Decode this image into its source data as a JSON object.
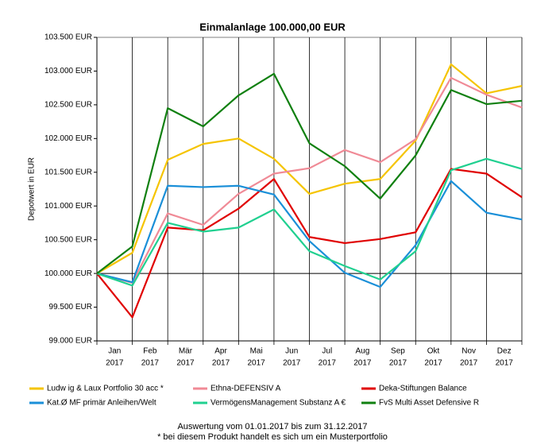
{
  "chart_data": {
    "type": "line",
    "title": "Einmalanlage 100.000,00 EUR",
    "y_label": "Depotwert in EUR",
    "categories": [
      null,
      [
        "Jan",
        "2017"
      ],
      [
        "Feb",
        "2017"
      ],
      [
        "Mär",
        "2017"
      ],
      [
        "Apr",
        "2017"
      ],
      [
        "Mai",
        "2017"
      ],
      [
        "Jun",
        "2017"
      ],
      [
        "Jul",
        "2017"
      ],
      [
        "Aug",
        "2017"
      ],
      [
        "Sep",
        "2017"
      ],
      [
        "Okt",
        "2017"
      ],
      [
        "Nov",
        "2017"
      ],
      [
        "Dez",
        "2017"
      ]
    ],
    "ylim": [
      99000,
      103500
    ],
    "yticks": [
      {
        "value": 99000,
        "label": "99.000 EUR"
      },
      {
        "value": 99500,
        "label": "99.500 EUR"
      },
      {
        "value": 100000,
        "label": "100.000 EUR"
      },
      {
        "value": 100500,
        "label": "100.500 EUR"
      },
      {
        "value": 101000,
        "label": "101.000 EUR"
      },
      {
        "value": 101500,
        "label": "101.500 EUR"
      },
      {
        "value": 102000,
        "label": "102.000 EUR"
      },
      {
        "value": 102500,
        "label": "102.500 EUR"
      },
      {
        "value": 103000,
        "label": "103.000 EUR"
      },
      {
        "value": 103500,
        "label": "103.500 EUR"
      }
    ],
    "series": [
      {
        "name": "Ludw ig & Laux Portfolio 30 acc *",
        "color": "#f5c400",
        "values": [
          100000,
          100306,
          101684,
          101920,
          102000,
          101700,
          101180,
          101330,
          101400,
          101970,
          103100,
          102670,
          102780
        ]
      },
      {
        "name": "Ethna-DEFENSIV A",
        "color": "#f08a96",
        "values": [
          100000,
          99860,
          100890,
          100720,
          101180,
          101480,
          101560,
          101830,
          101650,
          101990,
          102900,
          102650,
          102460
        ]
      },
      {
        "name": "Deka-Stiftungen Balance",
        "color": "#e00000",
        "values": [
          100000,
          99350,
          100680,
          100640,
          100960,
          101400,
          100540,
          100450,
          100510,
          100610,
          101550,
          101480,
          101130
        ]
      },
      {
        "name": "Kat.Ø MF primär Anleihen/Welt",
        "color": "#1a8fd8",
        "values": [
          100000,
          99870,
          101300,
          101280,
          101300,
          101170,
          100480,
          100010,
          99800,
          100420,
          101370,
          100900,
          100800
        ]
      },
      {
        "name": "VermögensManagement Substanz A €",
        "color": "#20d090",
        "values": [
          100000,
          99820,
          100750,
          100620,
          100680,
          100950,
          100330,
          100110,
          99910,
          100330,
          101530,
          101700,
          101550
        ]
      },
      {
        "name": "FvS Multi Asset Defensive R",
        "color": "#108010",
        "values": [
          100000,
          100400,
          102450,
          102180,
          102640,
          102960,
          101930,
          101590,
          101110,
          101750,
          102720,
          102510,
          102560
        ]
      }
    ],
    "footnotes": [
      "Auswertung vom 01.01.2017 bis zum 31.12.2017",
      "* bei diesem Produkt handelt es sich um ein Musterportfolio"
    ]
  }
}
